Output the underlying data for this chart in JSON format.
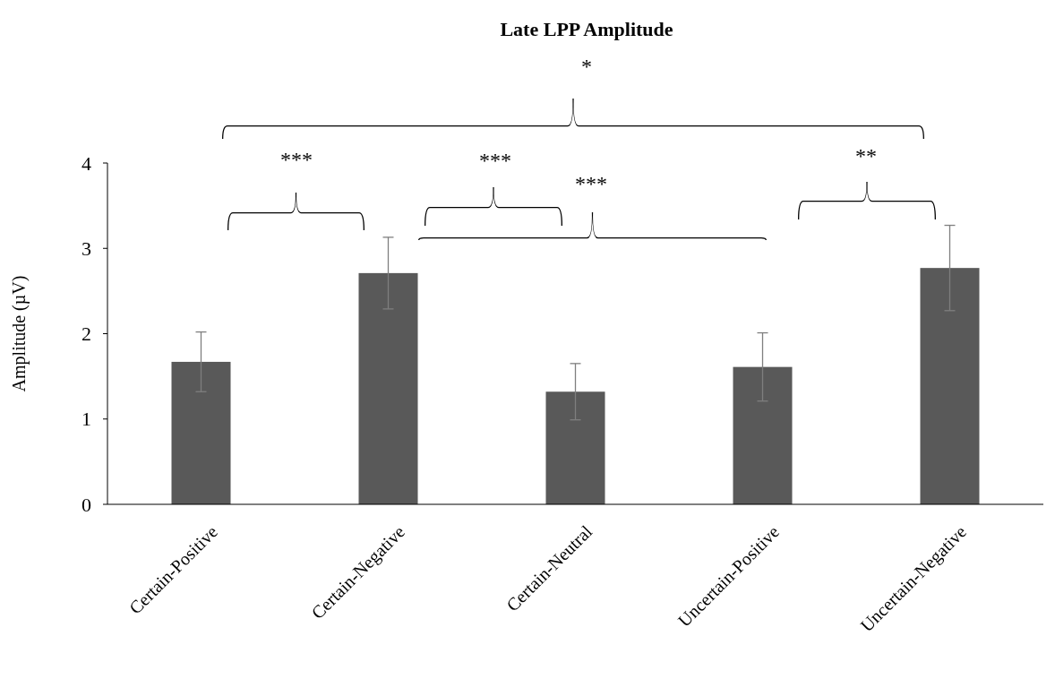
{
  "chart_data": {
    "type": "bar",
    "title": "Late LPP Amplitude",
    "ylabel": "Amplitude (µV)",
    "categories": [
      "Certain-Positive",
      "Certain-Negative",
      "Certain-Neutral",
      "Uncertain-Positive",
      "Uncertain-Negative"
    ],
    "values": [
      1.67,
      2.71,
      1.32,
      1.61,
      2.77
    ],
    "errors": [
      0.35,
      0.42,
      0.33,
      0.4,
      0.5
    ],
    "color": "#595959",
    "ylim": [
      0,
      4
    ],
    "yticks": [
      0,
      1,
      2,
      3,
      4
    ],
    "annotations": [
      "*",
      "***",
      "***",
      "***",
      "**"
    ]
  }
}
